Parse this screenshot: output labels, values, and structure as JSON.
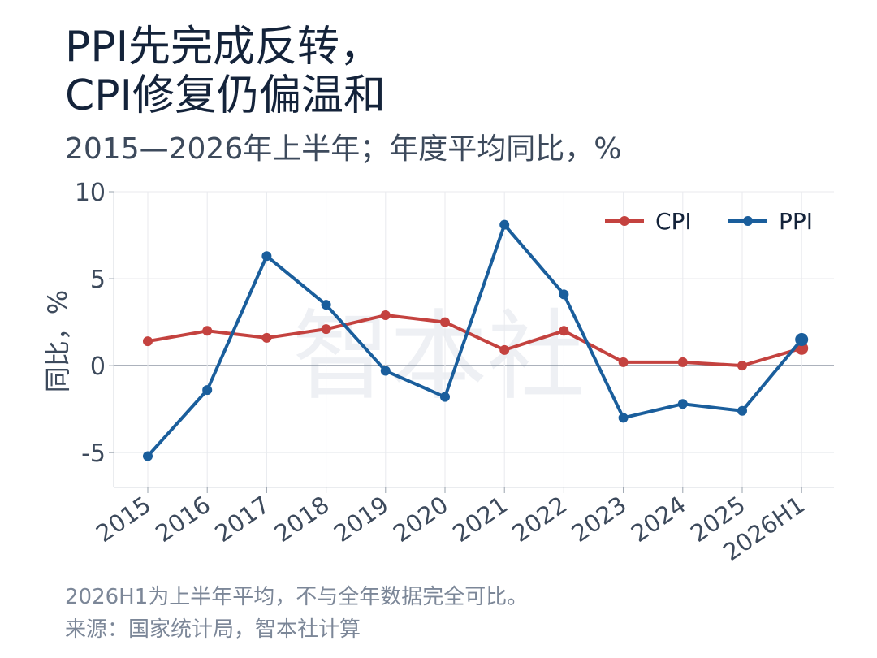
{
  "title_line1": "PPI先完成反转，",
  "title_line2": "CPI修复仍偏温和",
  "subtitle": "2015—2026年上半年；年度平均同比，%",
  "watermark": "智本社",
  "notes": {
    "line1": "2026H1为上半年平均，不与全年数据完全可比。",
    "line2": "来源：国家统计局，智本社计算"
  },
  "colors": {
    "cpi": "#c4423f",
    "ppi": "#1a5e9c",
    "grid": "#e8eaee",
    "zero_line": "#7a8594",
    "text": "#3d4a5c"
  },
  "chart_data": {
    "type": "line",
    "title": "",
    "xlabel": "",
    "ylabel": "同比，%",
    "categories": [
      "2015",
      "2016",
      "2017",
      "2018",
      "2019",
      "2020",
      "2021",
      "2022",
      "2023",
      "2024",
      "2025",
      "2026H1"
    ],
    "yticks": [
      10,
      5,
      0,
      -5
    ],
    "ytick_labels": [
      "10",
      "5",
      "0",
      "-5"
    ],
    "ylim": [
      -7,
      10
    ],
    "grid": true,
    "legend_position": "top-right",
    "series": [
      {
        "name": "CPI",
        "values": [
          1.4,
          2.0,
          1.6,
          2.1,
          2.9,
          2.5,
          0.9,
          2.0,
          0.2,
          0.2,
          0.0,
          1.0
        ]
      },
      {
        "name": "PPI",
        "values": [
          -5.2,
          -1.4,
          6.3,
          3.5,
          -0.3,
          -1.8,
          8.1,
          4.1,
          -3.0,
          -2.2,
          -2.6,
          1.5
        ]
      }
    ]
  }
}
